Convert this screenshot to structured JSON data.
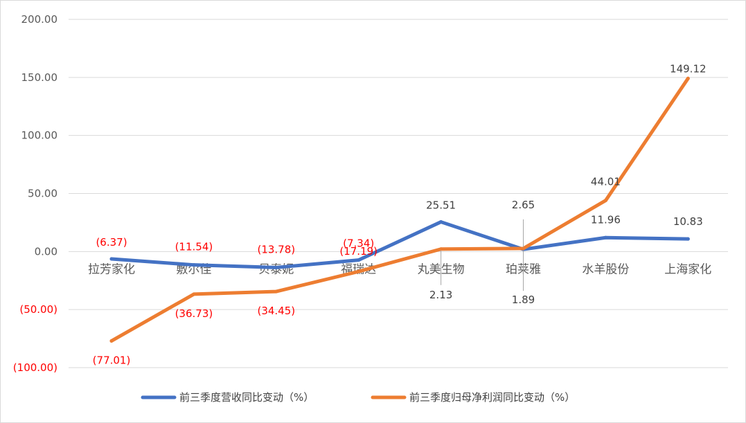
{
  "chart_data": {
    "type": "line",
    "categories": [
      "拉芳家化",
      "敷尔佳",
      "贝泰妮",
      "福瑞达",
      "丸美生物",
      "珀莱雅",
      "水羊股份",
      "上海家化"
    ],
    "series": [
      {
        "name": "前三季度营收同比变动（%）",
        "color": "#4472c4",
        "values": [
          -6.37,
          -11.54,
          -13.78,
          -7.34,
          25.51,
          1.89,
          11.96,
          10.83
        ],
        "labels": [
          "(6.37)",
          "(11.54)",
          "(13.78)",
          "(7.34)",
          "25.51",
          "1.89",
          "11.96",
          "10.83"
        ]
      },
      {
        "name": "前三季度归母净利润同比变动（%）",
        "color": "#ed7d31",
        "values": [
          -77.01,
          -36.73,
          -34.45,
          -17.19,
          2.13,
          2.65,
          44.01,
          149.12
        ],
        "labels": [
          "(77.01)",
          "(36.73)",
          "(34.45)",
          "(17.19)",
          "2.13",
          "2.65",
          "44.01",
          "149.12"
        ]
      }
    ],
    "ylim": [
      -100,
      200
    ],
    "yticks": [
      200,
      150,
      100,
      50,
      0,
      -50,
      -100
    ],
    "ytick_labels": [
      "200.00",
      "150.00",
      "100.00",
      "50.00",
      "0.00",
      "(50.00)",
      "(100.00)"
    ],
    "negative_color": "#ff0000",
    "grid": true,
    "legend_position": "bottom"
  }
}
